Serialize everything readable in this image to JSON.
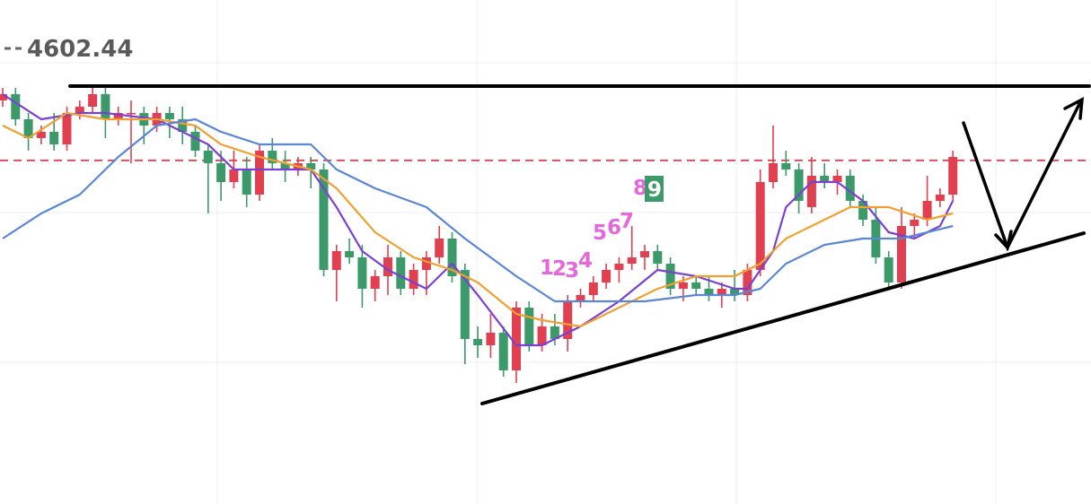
{
  "chart_data": {
    "type": "candlestick",
    "price_line": 4602.44,
    "ylim": [
      4560,
      4620
    ],
    "up_color": "#e0404f",
    "down_color": "#3c9a6a",
    "open": [
      4612,
      4613,
      4609,
      4606,
      4607,
      4605,
      4610,
      4611,
      4613,
      4609,
      4610,
      4610,
      4608,
      4610,
      4609,
      4607,
      4604,
      4602,
      4599,
      4601,
      4597,
      4604,
      4602,
      4601,
      4602,
      4601,
      4585,
      4588,
      4587,
      4582,
      4584,
      4587,
      4582,
      4585,
      4587,
      4590,
      4585,
      4574,
      4573,
      4575,
      4569,
      4579,
      4573,
      4576,
      4574,
      4580,
      4581,
      4583,
      4585,
      4586,
      4587,
      4588,
      4586,
      4582,
      4583,
      4582,
      4581,
      4582,
      4581,
      4585,
      4599,
      4602,
      4601,
      4595,
      4600,
      4599,
      4600,
      4596,
      4593,
      4587,
      4583,
      4592,
      4593,
      4596,
      4597
    ],
    "high": [
      4614,
      4614,
      4610,
      4608,
      4610,
      4611,
      4612,
      4614,
      4614,
      4611,
      4612,
      4611,
      4611,
      4611,
      4611,
      4608,
      4605,
      4604,
      4604,
      4603,
      4605,
      4606,
      4604,
      4603,
      4603,
      4602,
      4589,
      4590,
      4589,
      4585,
      4589,
      4588,
      4586,
      4588,
      4592,
      4591,
      4586,
      4576,
      4578,
      4576,
      4580,
      4580,
      4578,
      4578,
      4581,
      4582,
      4584,
      4586,
      4587,
      4592,
      4589,
      4589,
      4587,
      4584,
      4584,
      4584,
      4583,
      4585,
      4586,
      4601,
      4608,
      4604,
      4602,
      4603,
      4602,
      4601,
      4601,
      4597,
      4595,
      4588,
      4595,
      4594,
      4600,
      4598,
      4604
    ],
    "low": [
      4611,
      4608,
      4604,
      4605,
      4604,
      4604,
      4609,
      4610,
      4606,
      4608,
      4602,
      4605,
      4607,
      4606,
      4605,
      4603,
      4594,
      4596,
      4598,
      4595,
      4596,
      4601,
      4599,
      4600,
      4598,
      4584,
      4580,
      4586,
      4579,
      4580,
      4581,
      4581,
      4581,
      4581,
      4586,
      4583,
      4570,
      4571,
      4571,
      4568,
      4567,
      4572,
      4572,
      4573,
      4572,
      4579,
      4580,
      4582,
      4583,
      4585,
      4585,
      4585,
      4581,
      4580,
      4581,
      4580,
      4579,
      4580,
      4580,
      4584,
      4598,
      4600,
      4594,
      4594,
      4598,
      4597,
      4595,
      4592,
      4586,
      4582,
      4582,
      4590,
      4592,
      4595,
      4596
    ],
    "close": [
      4613,
      4609,
      4606,
      4607,
      4605,
      4610,
      4611,
      4613,
      4609,
      4610,
      4610,
      4608,
      4610,
      4609,
      4607,
      4604,
      4602,
      4599,
      4601,
      4597,
      4604,
      4602,
      4601,
      4602,
      4601,
      4585,
      4588,
      4587,
      4582,
      4584,
      4587,
      4582,
      4585,
      4587,
      4590,
      4584,
      4574,
      4573,
      4575,
      4569,
      4579,
      4573,
      4576,
      4574,
      4580,
      4581,
      4583,
      4585,
      4586,
      4587,
      4588,
      4586,
      4582,
      4583,
      4582,
      4581,
      4582,
      4581,
      4585,
      4599,
      4602,
      4601,
      4596,
      4600,
      4599,
      4600,
      4596,
      4593,
      4587,
      4583,
      4592,
      4593,
      4596,
      4597,
      4603
    ],
    "series": [
      {
        "color": "#7b3fd4",
        "x": [
          0,
          3,
          6,
          8,
          12,
          16,
          18,
          21,
          24,
          26,
          28,
          30,
          33,
          35,
          37,
          40,
          42,
          45,
          48,
          51,
          54,
          57,
          58,
          60,
          61,
          63,
          65,
          67,
          69,
          71,
          73,
          74
        ],
        "values": [
          4613,
          4609,
          4610,
          4610,
          4609,
          4605,
          4601,
          4601,
          4601,
          4595,
          4588,
          4585,
          4582,
          4586,
          4581,
          4573,
          4573,
          4576,
          4580,
          4585,
          4584,
          4582,
          4582,
          4588,
          4595,
          4599,
          4599,
          4596,
          4591,
          4590,
          4592,
          4596
        ]
      },
      {
        "color": "#f0a030",
        "x": [
          0,
          2,
          5,
          8,
          12,
          15,
          17,
          20,
          24,
          26,
          29,
          32,
          35,
          37,
          40,
          42,
          45,
          48,
          51,
          54,
          57,
          59,
          61,
          63,
          66,
          69,
          72,
          74
        ],
        "values": [
          4608,
          4606,
          4610,
          4609,
          4609,
          4608,
          4605,
          4603,
          4601,
          4598,
          4591,
          4587,
          4585,
          4583,
          4578,
          4577,
          4576,
          4579,
          4582,
          4584,
          4584,
          4586,
          4590,
          4592,
          4595,
          4595,
          4593,
          4594
        ]
      },
      {
        "color": "#5a86d6",
        "x": [
          0,
          3,
          6,
          9,
          12,
          15,
          17,
          20,
          24,
          26,
          29,
          33,
          36,
          40,
          43,
          46,
          50,
          54,
          57,
          59,
          61,
          64,
          67,
          70,
          74
        ],
        "values": [
          4590,
          4594,
          4597,
          4603,
          4608,
          4609,
          4607,
          4605,
          4605,
          4601,
          4598,
          4595,
          4590,
          4584,
          4580,
          4580,
          4580,
          4581,
          4581,
          4582,
          4586,
          4589,
          4590,
          4590,
          4592
        ]
      }
    ],
    "annotations": [
      "1",
      "2",
      "3",
      "4",
      "5",
      "6",
      "7",
      "8",
      "9"
    ]
  }
}
